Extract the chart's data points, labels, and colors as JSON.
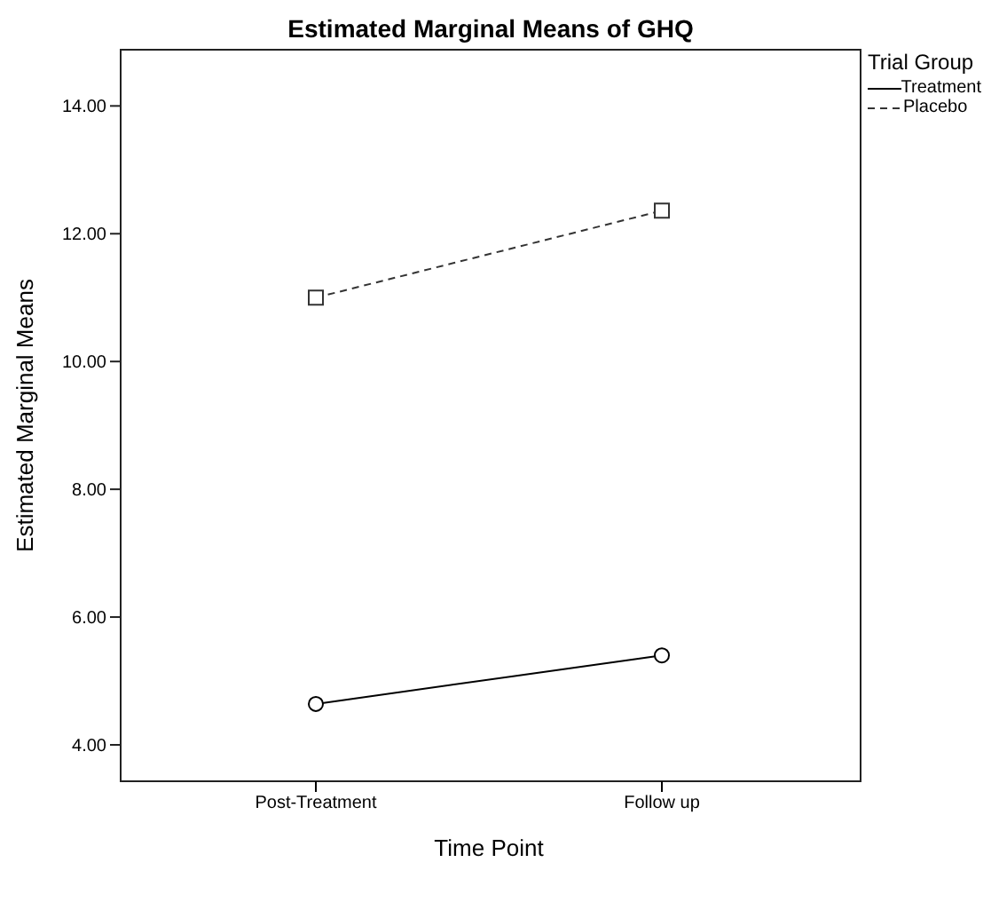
{
  "chart_data": {
    "type": "line",
    "title": "Estimated Marginal Means of GHQ",
    "xlabel": "Time Point",
    "ylabel": "Estimated Marginal Means",
    "legend_title": "Trial Group",
    "legend": "top right",
    "grid": false,
    "categories": [
      "Post-Treatment",
      "Follow up"
    ],
    "ylim": [
      3.43,
      14.88
    ],
    "yticks": [
      {
        "value": 4,
        "label": "4.00"
      },
      {
        "value": 6,
        "label": "6.00"
      },
      {
        "value": 8,
        "label": "8.00"
      },
      {
        "value": 10,
        "label": "10.00"
      },
      {
        "value": 12,
        "label": "12.00"
      },
      {
        "value": 14,
        "label": "14.00"
      }
    ],
    "series": [
      {
        "name": "Treatment",
        "color": "#000000",
        "values": [
          4.64,
          5.4
        ],
        "marker": "circle",
        "line_style": "solid"
      },
      {
        "name": "Placebo",
        "color": "#333333",
        "values": [
          11.0,
          12.36
        ],
        "marker": "square",
        "line_style": "dashed"
      }
    ]
  }
}
